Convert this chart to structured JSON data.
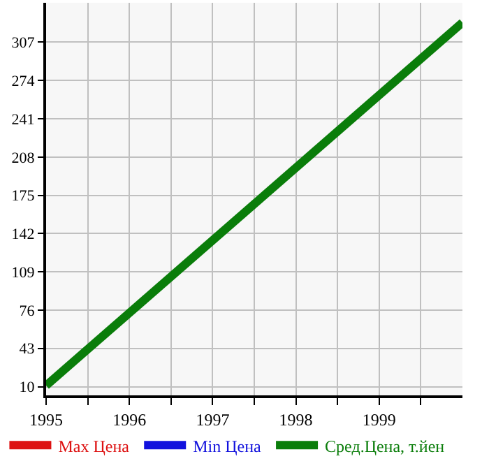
{
  "chart_data": {
    "type": "line",
    "x": [
      1995,
      2000
    ],
    "series": [
      {
        "name": "Max Цена",
        "color": "#dd1111",
        "values": [
          null,
          null
        ]
      },
      {
        "name": "Min Цена",
        "color": "#1111dd",
        "values": [
          null,
          null
        ]
      },
      {
        "name": "Сред.Цена, т.йен",
        "color": "#0a7d0a",
        "values": [
          11,
          324
        ]
      }
    ],
    "xlim": [
      1995,
      2000
    ],
    "xticks": [
      1995,
      {
        "value": 1995.5,
        "label": null
      },
      1996,
      {
        "value": 1996.5,
        "label": null
      },
      1997,
      {
        "value": 1997.5,
        "label": null
      },
      1998,
      {
        "value": 1998.5,
        "label": null
      },
      1999,
      {
        "value": 1999.5,
        "label": null
      }
    ],
    "ylim": [
      2.5,
      341
    ],
    "yticks": [
      10,
      43,
      76,
      109,
      142,
      175,
      208,
      241,
      274,
      307
    ],
    "grid": true,
    "legend": "bottom",
    "marker": "none",
    "line_style": "solid"
  }
}
